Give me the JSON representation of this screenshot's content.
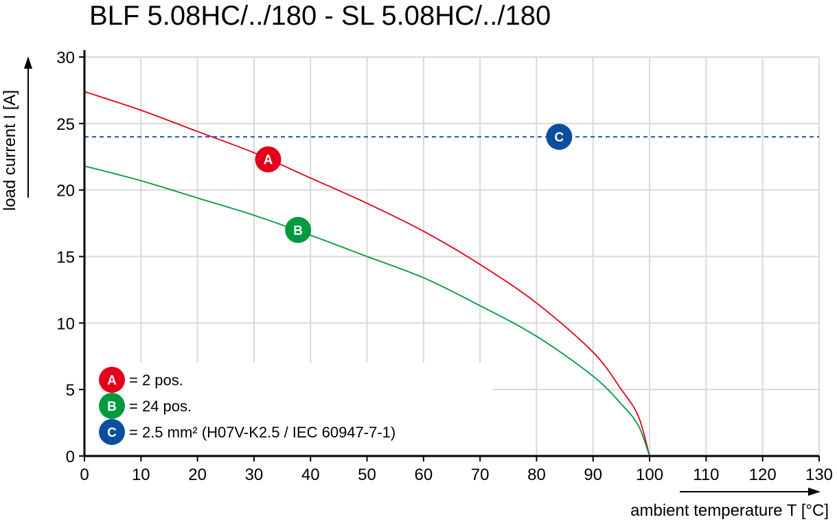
{
  "chart_data": {
    "type": "line",
    "title": "BLF 5.08HC/../180 - SL 5.08HC/../180",
    "xlabel": "ambient temperature T [°C]",
    "ylabel": "load current I [A]",
    "xlim": [
      0,
      130
    ],
    "ylim": [
      0,
      30
    ],
    "xticks": [
      0,
      10,
      20,
      30,
      40,
      50,
      60,
      70,
      80,
      90,
      100,
      110,
      120,
      130
    ],
    "yticks": [
      0,
      5,
      10,
      15,
      20,
      25,
      30
    ],
    "grid": true,
    "legend_position": "bottom-left",
    "series": [
      {
        "marker": "A",
        "color": "#e2001a",
        "style": "solid",
        "x": [
          0,
          10,
          20,
          30,
          40,
          50,
          60,
          70,
          80,
          90,
          95,
          98,
          100
        ],
        "y": [
          27.4,
          26.0,
          24.4,
          22.8,
          20.9,
          19.0,
          16.9,
          14.4,
          11.5,
          7.8,
          5.0,
          3.0,
          0
        ]
      },
      {
        "marker": "B",
        "color": "#009a3e",
        "style": "solid",
        "x": [
          0,
          10,
          20,
          30,
          40,
          50,
          60,
          70,
          80,
          90,
          95,
          98,
          100
        ],
        "y": [
          21.8,
          20.7,
          19.4,
          18.1,
          16.6,
          15.0,
          13.4,
          11.3,
          9.0,
          6.0,
          3.9,
          2.3,
          0
        ]
      },
      {
        "marker": "C",
        "color": "#1e50a0",
        "style": "dashed",
        "x": [
          0,
          130
        ],
        "y": [
          24,
          24
        ]
      }
    ],
    "markers": [
      {
        "label": "A",
        "x": 32.5,
        "y": 22.3,
        "color": "#e2001a"
      },
      {
        "label": "B",
        "x": 37.8,
        "y": 17.0,
        "color": "#009a3e"
      },
      {
        "label": "C",
        "x": 84,
        "y": 24,
        "color": "#0a4f9e"
      }
    ],
    "legend": [
      {
        "label": "A",
        "text": "= 2 pos.",
        "color": "#e2001a"
      },
      {
        "label": "B",
        "text": "= 24 pos.",
        "color": "#009a3e"
      },
      {
        "label": "C",
        "text": "= 2.5 mm² (H07V-K2.5 / IEC 60947-7-1)",
        "color": "#0a4f9e"
      }
    ]
  }
}
